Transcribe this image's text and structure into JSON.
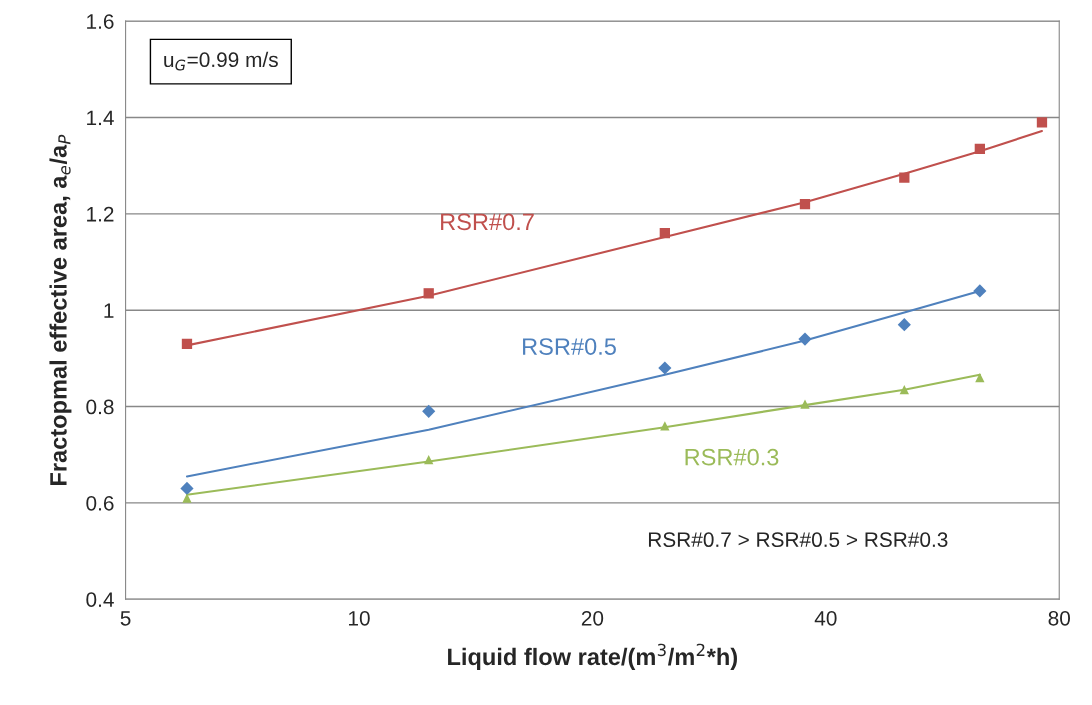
{
  "chart_data": {
    "type": "scatter",
    "xlabel": "Liquid flow rate/(m$^{3}$/m$^{2}$*h)",
    "ylabel": "Fractopmal effective area, a$_{e}$/a$_{P}$",
    "log": "x",
    "xlim": [
      5,
      80
    ],
    "xticks": [
      5,
      10,
      20,
      40,
      80
    ],
    "ylim": [
      0.4,
      1.6
    ],
    "yticks": [
      0.4,
      0.6,
      0.8,
      1,
      1.2,
      1.4,
      1.6
    ],
    "grid": "y",
    "legend": false,
    "annotations": [
      "u$_{G}$=0.99 m/s",
      "RSR#0.7 > RSR#0.5 > RSR#0.3"
    ],
    "series": [
      {
        "name": "RSR#0.7",
        "marker": "square",
        "color": "#c0504d",
        "x": [
          6,
          12.3,
          24.8,
          37.6,
          50.5,
          63.2,
          76
        ],
        "values": [
          0.93,
          1.035,
          1.16,
          1.22,
          1.275,
          1.335,
          1.39
        ]
      },
      {
        "name": "RSR#0.5",
        "marker": "diamond",
        "color": "#4f81bd",
        "x": [
          6,
          12.3,
          24.8,
          37.6,
          50.5,
          63.2
        ],
        "values": [
          0.63,
          0.79,
          0.88,
          0.94,
          0.97,
          1.04
        ]
      },
      {
        "name": "RSR#0.3",
        "marker": "triangle",
        "color": "#9bbb59",
        "x": [
          6,
          12.3,
          24.8,
          37.6,
          50.5,
          63.2
        ],
        "values": [
          0.61,
          0.69,
          0.76,
          0.805,
          0.835,
          0.86
        ]
      },
      {
        "type": "line",
        "marker": "none",
        "color": "#c0504d",
        "x": [
          6,
          12.3,
          24.8,
          37.6,
          50.5,
          63.2,
          76
        ],
        "values": [
          0.927,
          1.03,
          1.152,
          1.224,
          1.283,
          1.33,
          1.372
        ]
      },
      {
        "type": "line",
        "marker": "none",
        "color": "#4f81bd",
        "x": [
          6,
          12.3,
          24.8,
          37.6,
          50.5,
          63.2
        ],
        "values": [
          0.655,
          0.752,
          0.866,
          0.937,
          0.995,
          1.04
        ]
      },
      {
        "type": "line",
        "marker": "none",
        "color": "#9bbb59",
        "x": [
          6,
          12.3,
          24.8,
          37.6,
          50.5,
          63.2
        ],
        "values": [
          0.617,
          0.686,
          0.757,
          0.803,
          0.835,
          0.866
        ]
      }
    ]
  }
}
